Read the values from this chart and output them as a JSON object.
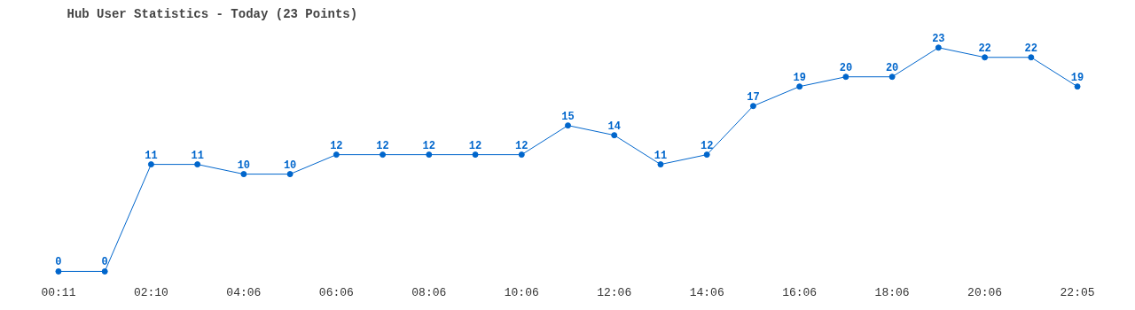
{
  "chart_data": {
    "type": "line",
    "title": "Hub User Statistics - Today (23 Points)",
    "categories": [
      "00:11",
      null,
      "02:10",
      null,
      "04:06",
      null,
      "06:06",
      null,
      "08:06",
      null,
      "10:06",
      null,
      "12:06",
      null,
      "14:06",
      null,
      "16:06",
      null,
      "18:06",
      null,
      "20:06",
      null,
      "22:05"
    ],
    "series": [
      {
        "color": "#0066cc",
        "values": [
          0,
          0,
          11,
          11,
          10,
          10,
          12,
          12,
          12,
          12,
          12,
          15,
          14,
          11,
          12,
          17,
          19,
          20,
          20,
          23,
          22,
          22,
          19
        ]
      }
    ],
    "marker": "circle",
    "line_style": "solid",
    "data_labels": true,
    "grid": false,
    "tick_labels": "x"
  }
}
